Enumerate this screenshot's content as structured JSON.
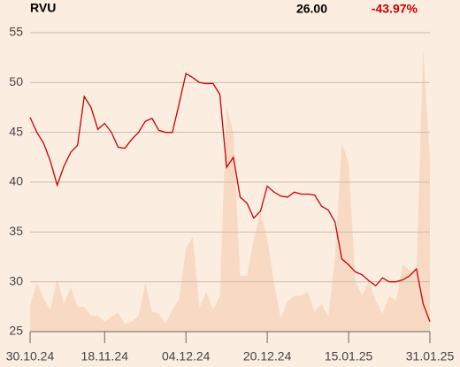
{
  "chart_data": {
    "type": "line",
    "title": "RVU",
    "price_label": "26.00",
    "change_label": "-43.97%",
    "change_color": "#cc0000",
    "categories": [
      "30.10.24",
      null,
      null,
      null,
      null,
      null,
      null,
      null,
      null,
      null,
      null,
      "18.11.24",
      null,
      null,
      null,
      null,
      null,
      null,
      null,
      null,
      null,
      null,
      null,
      "04.12.24",
      null,
      null,
      null,
      null,
      null,
      null,
      null,
      null,
      null,
      null,
      null,
      "20.12.24",
      null,
      null,
      null,
      null,
      null,
      null,
      null,
      null,
      null,
      null,
      null,
      "15.01.25",
      null,
      null,
      null,
      null,
      null,
      null,
      null,
      null,
      null,
      null,
      null,
      "31.01.25"
    ],
    "series": [
      {
        "kind": "area",
        "color": "#f8dac4",
        "values": [
          27.7,
          29.9,
          28.3,
          27.2,
          30.3,
          27.8,
          29.4,
          27.5,
          27.5,
          26.6,
          26.6,
          26.0,
          26.5,
          26.9,
          25.8,
          26.0,
          26.6,
          29.9,
          27.0,
          26.8,
          25.8,
          27.2,
          28.3,
          33.4,
          34.5,
          27.4,
          29.0,
          27.2,
          28.6,
          47.6,
          45.0,
          30.6,
          30.6,
          34.3,
          37.0,
          34.3,
          29.9,
          26.3,
          28.1,
          28.6,
          28.6,
          29.0,
          27.0,
          27.8,
          26.5,
          32.5,
          43.9,
          42.0,
          30.1,
          28.6,
          30.1,
          28.1,
          26.8,
          28.6,
          28.1,
          31.7,
          31.2,
          30.8,
          53.4,
          42.3
        ]
      },
      {
        "kind": "line",
        "color": "#cc0000",
        "values": [
          46.5,
          45.0,
          43.9,
          42.1,
          39.7,
          41.6,
          43.0,
          43.7,
          48.6,
          47.5,
          45.3,
          45.9,
          45.0,
          43.5,
          43.4,
          44.3,
          45.0,
          46.1,
          46.4,
          45.2,
          45.0,
          45.0,
          47.9,
          50.9,
          50.5,
          50.0,
          49.9,
          49.9,
          48.8,
          41.5,
          42.5,
          38.5,
          37.9,
          36.4,
          37.1,
          39.6,
          39.0,
          38.6,
          38.5,
          39.0,
          38.8,
          38.8,
          38.7,
          37.6,
          37.2,
          36.0,
          32.3,
          31.7,
          31.0,
          30.7,
          30.1,
          29.6,
          30.4,
          30.0,
          30.0,
          30.2,
          30.6,
          31.3,
          27.8,
          26.0
        ]
      }
    ],
    "ylim": [
      25,
      55
    ],
    "yticks": [
      25,
      30,
      35,
      40,
      45,
      50,
      55
    ],
    "grid": true
  }
}
